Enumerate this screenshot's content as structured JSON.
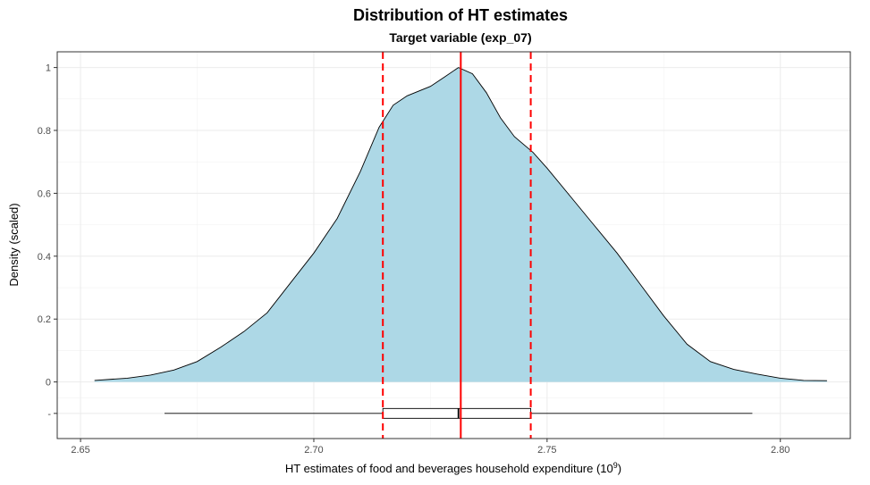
{
  "chart_data": {
    "type": "area",
    "title": "Distribution of HT estimates",
    "subtitle": "Target variable (exp_07)",
    "xlabel": "HT estimates of food and beverages household expenditure (10",
    "xlabel_superscript": "9",
    "xlabel_suffix": ")",
    "ylabel": "Density (scaled)",
    "xlim": [
      2.645,
      2.815
    ],
    "ylim": [
      -0.18,
      1.05
    ],
    "x_ticks": [
      2.65,
      2.7,
      2.75,
      2.8
    ],
    "x_tick_labels": [
      "2.65",
      "2.70",
      "2.75",
      "2.80"
    ],
    "y_ticks": [
      0,
      0.2,
      0.4,
      0.6,
      0.8,
      1
    ],
    "y_tick_labels": [
      "0",
      "0.2",
      "0.4",
      "0.6",
      "0.8",
      "1"
    ],
    "boxplot_y_tick_label": "-",
    "grid": true,
    "fill_color": "#add8e6",
    "line_color": "#ff0000",
    "density": {
      "x": [
        2.653,
        2.66,
        2.665,
        2.67,
        2.675,
        2.68,
        2.685,
        2.69,
        2.695,
        2.7,
        2.705,
        2.71,
        2.714,
        2.717,
        2.72,
        2.725,
        2.728,
        2.731,
        2.734,
        2.737,
        2.74,
        2.743,
        2.747,
        2.75,
        2.755,
        2.76,
        2.765,
        2.77,
        2.775,
        2.78,
        2.785,
        2.79,
        2.795,
        2.8,
        2.805,
        2.81
      ],
      "y": [
        0.005,
        0.012,
        0.022,
        0.038,
        0.065,
        0.11,
        0.16,
        0.22,
        0.315,
        0.41,
        0.52,
        0.67,
        0.81,
        0.88,
        0.91,
        0.94,
        0.97,
        1.0,
        0.98,
        0.92,
        0.84,
        0.78,
        0.73,
        0.68,
        0.59,
        0.5,
        0.41,
        0.31,
        0.21,
        0.12,
        0.065,
        0.04,
        0.025,
        0.012,
        0.005,
        0.004
      ]
    },
    "reference_lines": [
      {
        "x": 2.7315,
        "style": "solid"
      },
      {
        "x": 2.7148,
        "style": "dashed"
      },
      {
        "x": 2.7465,
        "style": "dashed"
      }
    ],
    "boxplot": {
      "y": -0.1,
      "min": 2.668,
      "q1": 2.7148,
      "median": 2.731,
      "q3": 2.7465,
      "max": 2.794
    }
  }
}
